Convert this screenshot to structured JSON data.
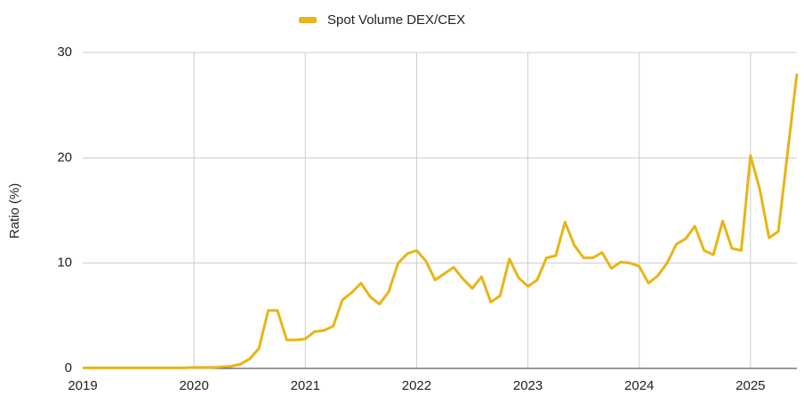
{
  "chart_data": {
    "type": "line",
    "y_label": "Ratio (%)",
    "categories": [
      "2019",
      null,
      null,
      null,
      null,
      null,
      null,
      null,
      null,
      null,
      null,
      null,
      "2020",
      null,
      null,
      null,
      null,
      null,
      null,
      null,
      null,
      null,
      null,
      null,
      "2021",
      null,
      null,
      null,
      null,
      null,
      null,
      null,
      null,
      null,
      null,
      null,
      "2022",
      null,
      null,
      null,
      null,
      null,
      null,
      null,
      null,
      null,
      null,
      null,
      "2023",
      null,
      null,
      null,
      null,
      null,
      null,
      null,
      null,
      null,
      null,
      null,
      "2024",
      null,
      null,
      null,
      null,
      null,
      null,
      null,
      null,
      null,
      null,
      null,
      "2025",
      null,
      null,
      null,
      null,
      null
    ],
    "series": [
      {
        "name": "Spot Volume DEX/CEX",
        "color": "#e8b516",
        "values": [
          0.05,
          0.05,
          0.05,
          0.05,
          0.05,
          0.05,
          0.05,
          0.05,
          0.05,
          0.05,
          0.05,
          0.05,
          0.1,
          0.1,
          0.1,
          0.15,
          0.2,
          0.4,
          0.9,
          1.9,
          5.5,
          5.5,
          2.7,
          2.7,
          2.8,
          3.5,
          3.6,
          4.0,
          6.5,
          7.2,
          8.1,
          6.8,
          6.1,
          7.3,
          10.0,
          10.9,
          11.2,
          10.2,
          8.4,
          9.0,
          9.6,
          8.5,
          7.6,
          8.7,
          6.3,
          6.9,
          10.4,
          8.6,
          7.8,
          8.4,
          10.5,
          10.7,
          13.9,
          11.7,
          10.5,
          10.5,
          11.0,
          9.5,
          10.1,
          10.0,
          9.7,
          8.1,
          8.8,
          10.0,
          11.8,
          12.3,
          13.5,
          11.2,
          10.8,
          14.0,
          11.4,
          11.2,
          20.2,
          17.0,
          12.4,
          13.0,
          20.5,
          28.0
        ]
      }
    ],
    "ylim": [
      0,
      30
    ],
    "yticks": [
      0,
      10,
      20,
      30
    ],
    "grid": true,
    "legend": "top"
  }
}
